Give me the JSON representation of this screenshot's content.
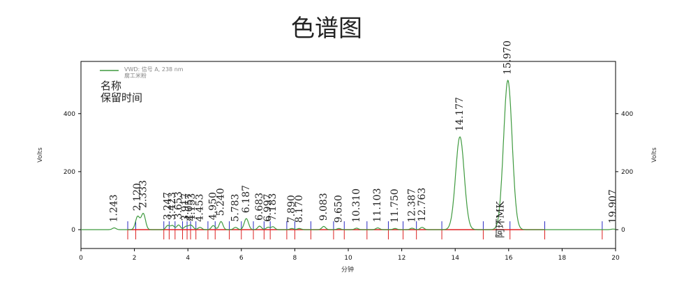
{
  "title": "色谱图",
  "chart_data": {
    "type": "line",
    "x_label": "分钟",
    "y_label_left": "Volts",
    "y_label_right": "Volts",
    "xlim": [
      0,
      20
    ],
    "ylim": [
      -65,
      580
    ],
    "x_ticks": [
      0,
      2,
      4,
      6,
      8,
      10,
      12,
      14,
      16,
      18,
      20
    ],
    "y_ticks": [
      0,
      200,
      400
    ],
    "legend": {
      "line1": "VWD: 信号 A, 238 nm",
      "line2": "腐工米粉",
      "placement": "top-left"
    },
    "header_labels": [
      "名称",
      "保留时间"
    ],
    "series_color": "#3f9a3f",
    "baseline_color": "#dd2020",
    "marker_color": "#2a2ac0",
    "peaks": [
      {
        "label": "1.243",
        "rt": 1.243,
        "height": 6
      },
      {
        "label": "2.120",
        "rt": 2.12,
        "height": 45
      },
      {
        "label": "2.333",
        "rt": 2.333,
        "height": 55
      },
      {
        "label": "3.247",
        "rt": 3.247,
        "height": 14
      },
      {
        "label": "3.423",
        "rt": 3.423,
        "height": 14
      },
      {
        "label": "3.653",
        "rt": 3.653,
        "height": 16
      },
      {
        "label": "3.917",
        "rt": 3.917,
        "height": 10
      },
      {
        "label": "4.057",
        "rt": 4.057,
        "height": 10
      },
      {
        "label": "4.153",
        "rt": 4.153,
        "height": 10
      },
      {
        "label": "4.453",
        "rt": 4.453,
        "height": 8
      },
      {
        "label": "4.950",
        "rt": 4.95,
        "height": 14
      },
      {
        "label": "5.240",
        "rt": 5.24,
        "height": 28
      },
      {
        "label": "5.783",
        "rt": 5.783,
        "height": 8
      },
      {
        "label": "6.187",
        "rt": 6.187,
        "height": 38
      },
      {
        "label": "6.683",
        "rt": 6.683,
        "height": 12
      },
      {
        "label": "6.997",
        "rt": 6.997,
        "height": 8
      },
      {
        "label": "7.183",
        "rt": 7.183,
        "height": 10
      },
      {
        "label": "7.890",
        "rt": 7.89,
        "height": 4
      },
      {
        "label": "8.170",
        "rt": 8.17,
        "height": 4
      },
      {
        "label": "9.083",
        "rt": 9.083,
        "height": 11
      },
      {
        "label": "9.650",
        "rt": 9.65,
        "height": 4
      },
      {
        "label": "10.310",
        "rt": 10.31,
        "height": 5
      },
      {
        "label": "11.103",
        "rt": 11.103,
        "height": 6
      },
      {
        "label": "11.750",
        "rt": 11.75,
        "height": 4
      },
      {
        "label": "12.387",
        "rt": 12.387,
        "height": 5
      },
      {
        "label": "12.763",
        "rt": 12.763,
        "height": 8
      },
      {
        "label": "14.177",
        "rt": 14.177,
        "height": 320
      },
      {
        "label": "15.970",
        "rt": 15.97,
        "height": 515,
        "name": "阿环MK"
      },
      {
        "label": "19.907",
        "rt": 19.907,
        "height": 2
      }
    ],
    "integration_markers": [
      1.75,
      2.05,
      3.1,
      3.3,
      3.52,
      3.8,
      3.97,
      4.1,
      4.3,
      4.75,
      5.02,
      5.55,
      6.0,
      6.45,
      6.85,
      7.08,
      7.7,
      8.0,
      8.6,
      9.45,
      9.85,
      10.7,
      11.5,
      12.05,
      12.55,
      13.5,
      15.05,
      16.05,
      17.35,
      19.5
    ],
    "annotation_extent": [
      1.75,
      17.35
    ]
  }
}
